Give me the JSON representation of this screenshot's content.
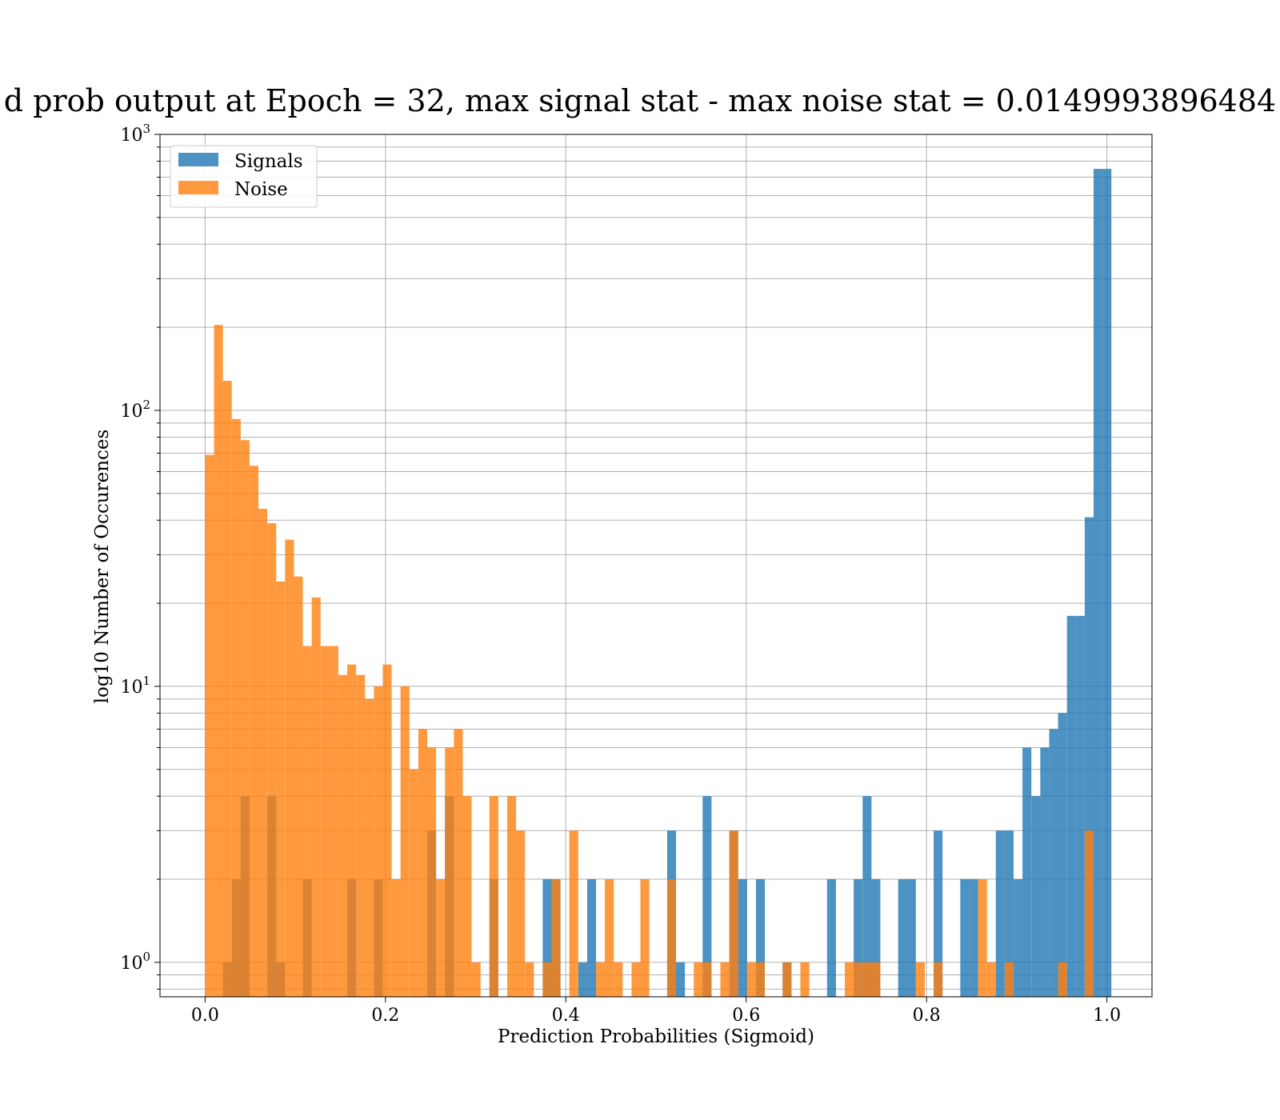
{
  "chart_data": {
    "type": "bar",
    "title": "d prob output at Epoch = 32, max signal stat - max noise stat = 0.0149993896484",
    "xlabel": "Prediction Probabilities (Sigmoid)",
    "ylabel": "log10 Number of Occurences",
    "xlim": [
      -0.05,
      1.05
    ],
    "ylim": [
      0.75,
      1000
    ],
    "yscale": "log",
    "grid": true,
    "legend_position": "top-left",
    "xticks": [
      "0.0",
      "0.2",
      "0.4",
      "0.6",
      "0.8",
      "1.0"
    ],
    "xtick_values": [
      0.0,
      0.2,
      0.4,
      0.6,
      0.8,
      1.0
    ],
    "yticks": [
      {
        "base": "10",
        "exp": "0",
        "value": 1
      },
      {
        "base": "10",
        "exp": "1",
        "value": 10
      },
      {
        "base": "10",
        "exp": "2",
        "value": 100
      },
      {
        "base": "10",
        "exp": "3",
        "value": 1000
      }
    ],
    "series": [
      {
        "name": "Signals",
        "color": "#1f77b4",
        "opacity": 0.8,
        "bin_width": 0.00985,
        "bins": [
          [
            0.0197,
            1
          ],
          [
            0.0296,
            2
          ],
          [
            0.0394,
            4
          ],
          [
            0.069,
            4
          ],
          [
            0.0788,
            1
          ],
          [
            0.1084,
            2
          ],
          [
            0.1577,
            2
          ],
          [
            0.1872,
            2
          ],
          [
            0.2463,
            3
          ],
          [
            0.266,
            4
          ],
          [
            0.3153,
            2
          ],
          [
            0.3744,
            2
          ],
          [
            0.3843,
            2
          ],
          [
            0.4138,
            1
          ],
          [
            0.4237,
            2
          ],
          [
            0.5124,
            3
          ],
          [
            0.5222,
            1
          ],
          [
            0.5517,
            4
          ],
          [
            0.5813,
            3
          ],
          [
            0.5911,
            2
          ],
          [
            0.6108,
            2
          ],
          [
            0.6404,
            1
          ],
          [
            0.6897,
            2
          ],
          [
            0.7192,
            2
          ],
          [
            0.7291,
            4
          ],
          [
            0.7389,
            2
          ],
          [
            0.7685,
            2
          ],
          [
            0.7783,
            2
          ],
          [
            0.8079,
            3
          ],
          [
            0.8374,
            2
          ],
          [
            0.8473,
            2
          ],
          [
            0.8768,
            3
          ],
          [
            0.8867,
            3
          ],
          [
            0.8966,
            2
          ],
          [
            0.9064,
            6
          ],
          [
            0.9163,
            4
          ],
          [
            0.9261,
            6
          ],
          [
            0.936,
            7
          ],
          [
            0.9458,
            8
          ],
          [
            0.9557,
            18
          ],
          [
            0.9655,
            18
          ],
          [
            0.9754,
            41
          ],
          [
            0.9852,
            750
          ],
          [
            0.9951,
            750
          ]
        ]
      },
      {
        "name": "Noise",
        "color": "#ff7f0e",
        "opacity": 0.8,
        "bin_width": 0.00985,
        "bins": [
          [
            0.0,
            69
          ],
          [
            0.0099,
            204
          ],
          [
            0.0197,
            128
          ],
          [
            0.0296,
            93
          ],
          [
            0.0394,
            78
          ],
          [
            0.0493,
            63
          ],
          [
            0.0591,
            44
          ],
          [
            0.069,
            39
          ],
          [
            0.0788,
            24
          ],
          [
            0.0887,
            34
          ],
          [
            0.0985,
            25
          ],
          [
            0.1084,
            14
          ],
          [
            0.1182,
            21
          ],
          [
            0.1281,
            14
          ],
          [
            0.1379,
            14
          ],
          [
            0.1478,
            11
          ],
          [
            0.1576,
            12
          ],
          [
            0.1675,
            11
          ],
          [
            0.1773,
            9
          ],
          [
            0.1872,
            10
          ],
          [
            0.197,
            12
          ],
          [
            0.2069,
            2
          ],
          [
            0.2167,
            10
          ],
          [
            0.2266,
            5
          ],
          [
            0.2365,
            7
          ],
          [
            0.2463,
            6
          ],
          [
            0.2562,
            2
          ],
          [
            0.266,
            6
          ],
          [
            0.2759,
            7
          ],
          [
            0.2857,
            4
          ],
          [
            0.2956,
            1
          ],
          [
            0.3153,
            4
          ],
          [
            0.335,
            4
          ],
          [
            0.3448,
            3
          ],
          [
            0.3547,
            1
          ],
          [
            0.3744,
            1
          ],
          [
            0.3842,
            2
          ],
          [
            0.4039,
            3
          ],
          [
            0.4335,
            1
          ],
          [
            0.4433,
            2
          ],
          [
            0.4532,
            1
          ],
          [
            0.4729,
            1
          ],
          [
            0.4827,
            2
          ],
          [
            0.5123,
            2
          ],
          [
            0.5419,
            1
          ],
          [
            0.5517,
            1
          ],
          [
            0.5714,
            1
          ],
          [
            0.5813,
            3
          ],
          [
            0.601,
            1
          ],
          [
            0.6108,
            1
          ],
          [
            0.6404,
            1
          ],
          [
            0.6601,
            1
          ],
          [
            0.7094,
            1
          ],
          [
            0.7192,
            1
          ],
          [
            0.7291,
            1
          ],
          [
            0.7389,
            1
          ],
          [
            0.7882,
            1
          ],
          [
            0.8079,
            1
          ],
          [
            0.8571,
            2
          ],
          [
            0.867,
            1
          ],
          [
            0.8867,
            1
          ],
          [
            0.9458,
            1
          ],
          [
            0.9754,
            3
          ]
        ]
      }
    ]
  }
}
